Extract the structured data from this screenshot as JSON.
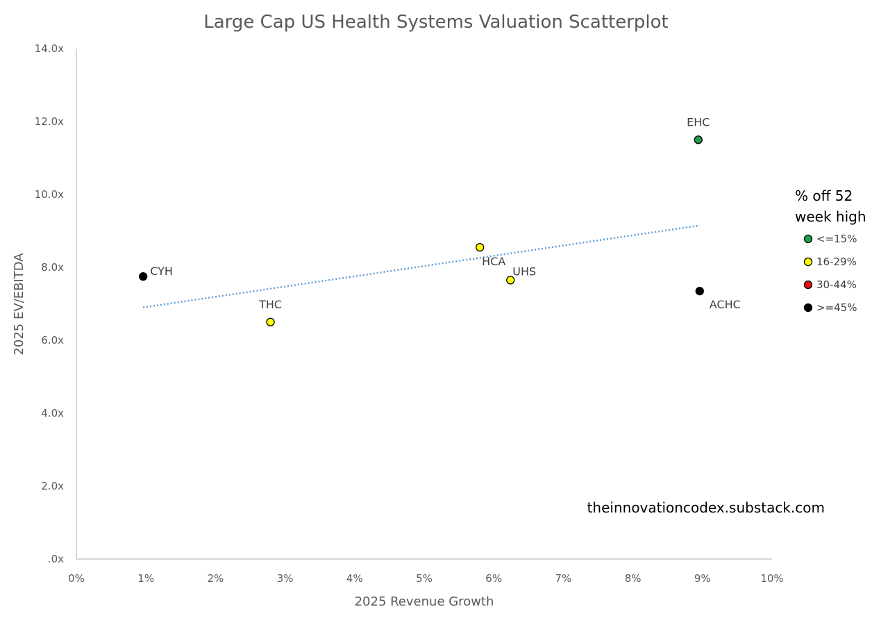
{
  "chart_data": {
    "type": "scatter",
    "title": "Large Cap US Health Systems Valuation Scatterplot",
    "xlabel": "2025 Revenue Growth",
    "ylabel": "2025 EV/EBITDA",
    "xlim": [
      0,
      10
    ],
    "ylim": [
      0,
      14
    ],
    "x_ticks": [
      {
        "value": 0,
        "label": "0%"
      },
      {
        "value": 1,
        "label": "1%"
      },
      {
        "value": 2,
        "label": "2%"
      },
      {
        "value": 3,
        "label": "3%"
      },
      {
        "value": 4,
        "label": "4%"
      },
      {
        "value": 5,
        "label": "5%"
      },
      {
        "value": 6,
        "label": "6%"
      },
      {
        "value": 7,
        "label": "7%"
      },
      {
        "value": 8,
        "label": "8%"
      },
      {
        "value": 9,
        "label": "9%"
      },
      {
        "value": 10,
        "label": "10%"
      }
    ],
    "y_ticks": [
      {
        "value": 0,
        "label": ".0x"
      },
      {
        "value": 2,
        "label": "2.0x"
      },
      {
        "value": 4,
        "label": "4.0x"
      },
      {
        "value": 6,
        "label": "6.0x"
      },
      {
        "value": 8,
        "label": "8.0x"
      },
      {
        "value": 10,
        "label": "10.0x"
      },
      {
        "value": 12,
        "label": "12.0x"
      },
      {
        "value": 14,
        "label": "14.0x"
      }
    ],
    "points": [
      {
        "label": "CYH",
        "x": 0.96,
        "y": 7.75,
        "category": ">=45%",
        "label_pos": "right"
      },
      {
        "label": "THC",
        "x": 2.79,
        "y": 6.5,
        "category": "16-29%",
        "label_pos": "above"
      },
      {
        "label": "HCA",
        "x": 5.8,
        "y": 8.55,
        "category": "16-29%",
        "label_pos": "below-right"
      },
      {
        "label": "UHS",
        "x": 6.24,
        "y": 7.65,
        "category": "16-29%",
        "label_pos": "above-right"
      },
      {
        "label": "EHC",
        "x": 8.94,
        "y": 11.5,
        "category": "<=15%",
        "label_pos": "above"
      },
      {
        "label": "ACHC",
        "x": 8.96,
        "y": 7.35,
        "category": ">=45%",
        "label_pos": "below-right"
      }
    ],
    "trendline": {
      "type": "linear",
      "style": "dotted",
      "color": "#5b9bd5",
      "x0": 0.96,
      "y0": 6.9,
      "x1": 8.96,
      "y1": 9.15
    },
    "legend": {
      "title_lines": [
        "% off 52",
        "week high"
      ],
      "position": "right",
      "items": [
        {
          "label": "<=15%",
          "color": "#1e9e4a"
        },
        {
          "label": "16-29%",
          "color": "#ffff00"
        },
        {
          "label": "30-44%",
          "color": "#e8120c"
        },
        {
          "label": ">=45%",
          "color": "#000000"
        }
      ]
    },
    "grid": false,
    "annotation": "theinnovationcodex.substack.com"
  },
  "colors": {
    "axis": "#bfbfbf",
    "marker_edge": "#000000",
    "trendline": "#5b9bd5"
  }
}
